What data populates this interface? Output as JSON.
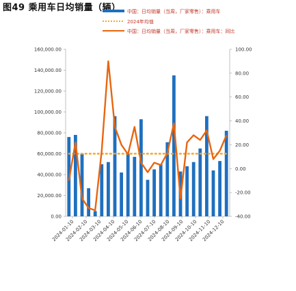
{
  "figure": {
    "title": "图49 乘用车日均销量（辆）"
  },
  "chart_data": {
    "type": "bar",
    "title": "",
    "xlabel": "",
    "ylabel": "",
    "ylim_left": [
      0,
      160000
    ],
    "ylim_right": [
      -40,
      100
    ],
    "yticks_left": [
      "160,000.00",
      "140,000.00",
      "120,000.00",
      "100,000.00",
      "80,000.00",
      "60,000.00",
      "40,000.00",
      "20,000.00",
      "0.00"
    ],
    "yticks_right": [
      "100.00",
      "80.00",
      "60.00",
      "40.00",
      "20.00",
      "0.00",
      "-20.00",
      "-40.00"
    ],
    "xticks": [
      "2024-01-10",
      "2024-02-10",
      "2024-03-10",
      "2024-04-10",
      "2024-05-10",
      "2024-06-10",
      "2024-07-10",
      "2024-08-10",
      "2024-09-10",
      "2024-10-10",
      "2024-11-10",
      "2024-12-10"
    ],
    "legend": [
      "中国：日均销量（当周，厂家零售）：乘用车",
      "2024年均值",
      "中国：日均销量（当周，厂家零售）：乘用车：同比"
    ],
    "series": [
      {
        "name": "中国：日均销量（当周，厂家零售）：乘用车",
        "type": "bar",
        "axis": "left",
        "color": "#1f6fbf",
        "values": [
          76000,
          78000,
          60000,
          27000,
          5000,
          50000,
          52000,
          96000,
          42000,
          60000,
          57000,
          93000,
          35000,
          45000,
          50000,
          71000,
          135000,
          43000,
          48000,
          52000,
          65000,
          96000,
          44000,
          53000,
          82000
        ]
      },
      {
        "name": "2024年均值",
        "type": "dotted",
        "axis": "left",
        "color": "#f5a623",
        "values": [
          60000,
          60000,
          60000,
          60000,
          60000,
          60000,
          60000,
          60000,
          60000,
          60000,
          60000,
          60000,
          60000,
          60000,
          60000,
          60000,
          60000,
          60000,
          60000,
          60000,
          60000,
          60000,
          60000,
          60000,
          60000
        ]
      },
      {
        "name": "中国：日均销量（当周，厂家零售）：乘用车：同比",
        "type": "line",
        "axis": "right",
        "color": "#e8650f",
        "values": [
          -10,
          22,
          -25,
          -33,
          -35,
          15,
          90,
          35,
          20,
          12,
          35,
          5,
          -3,
          5,
          3,
          13,
          38,
          -25,
          22,
          28,
          24,
          32,
          8,
          15,
          28
        ]
      }
    ],
    "grid": false,
    "legend_position": "top"
  }
}
